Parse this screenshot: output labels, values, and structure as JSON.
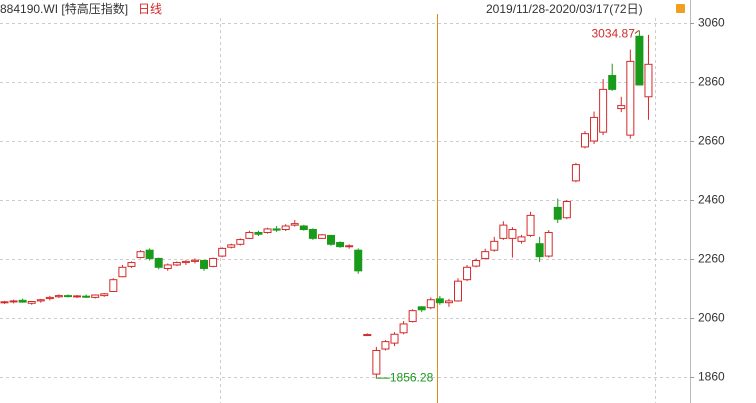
{
  "chart_data": {
    "type": "candlestick",
    "title": "884190.WI [特高压指数]",
    "period": "日线",
    "range": "2019/11/28-2020/03/17(72日)",
    "up_color": "#d42a2a",
    "down_color": "#1a9a1a",
    "ylim": [
      1772,
      3138
    ],
    "yticks": [
      1860,
      2060,
      2260,
      2460,
      2660,
      2860,
      3060
    ],
    "grid": true,
    "open": [
      2112,
      2115,
      2120,
      2110,
      2118,
      2126,
      2132,
      2136,
      2132,
      2134,
      2130,
      2136,
      2150,
      2200,
      2235,
      2265,
      2290,
      2262,
      2228,
      2240,
      2248,
      2252,
      2255,
      2235,
      2270,
      2300,
      2310,
      2330,
      2350,
      2350,
      2362,
      2360,
      2375,
      2372,
      2360,
      2330,
      2340,
      2316,
      2302,
      2290,
      2002,
      1870,
      1955,
      1975,
      2010,
      2048,
      2098,
      2095,
      2125,
      2112,
      2118,
      2190,
      2236,
      2262,
      2290,
      2330,
      2330,
      2320,
      2340,
      2312,
      2270,
      2435,
      2400,
      2525,
      2640,
      2660,
      2690,
      2882,
      2770,
      2680,
      3015,
      2810
    ],
    "high": [
      2118,
      2122,
      2126,
      2118,
      2125,
      2135,
      2140,
      2140,
      2138,
      2140,
      2140,
      2145,
      2195,
      2240,
      2252,
      2290,
      2296,
      2265,
      2245,
      2252,
      2256,
      2262,
      2258,
      2265,
      2300,
      2312,
      2330,
      2356,
      2356,
      2366,
      2372,
      2378,
      2392,
      2376,
      2364,
      2345,
      2342,
      2320,
      2310,
      2296,
      2008,
      1962,
      1985,
      2012,
      2050,
      2090,
      2100,
      2130,
      2135,
      2125,
      2195,
      2240,
      2262,
      2295,
      2335,
      2388,
      2368,
      2342,
      2420,
      2335,
      2358,
      2465,
      2460,
      2586,
      2694,
      2760,
      2870,
      2922,
      2810,
      2970,
      3034.87,
      3020
    ],
    "low": [
      2108,
      2110,
      2112,
      2105,
      2112,
      2120,
      2128,
      2130,
      2128,
      2128,
      2126,
      2132,
      2148,
      2198,
      2230,
      2262,
      2255,
      2225,
      2220,
      2236,
      2240,
      2245,
      2220,
      2232,
      2266,
      2296,
      2306,
      2328,
      2338,
      2346,
      2352,
      2355,
      2370,
      2356,
      2325,
      2328,
      2305,
      2298,
      2295,
      2210,
      1999,
      1856.28,
      1950,
      1965,
      2005,
      2045,
      2080,
      2090,
      2105,
      2098,
      2115,
      2185,
      2232,
      2258,
      2285,
      2325,
      2265,
      2312,
      2335,
      2250,
      2265,
      2382,
      2395,
      2520,
      2635,
      2650,
      2680,
      2830,
      2758,
      2668,
      2850,
      2732
    ],
    "close": [
      2115,
      2118,
      2114,
      2116,
      2122,
      2130,
      2136,
      2134,
      2135,
      2132,
      2138,
      2142,
      2190,
      2232,
      2248,
      2285,
      2262,
      2232,
      2240,
      2248,
      2252,
      2256,
      2228,
      2262,
      2296,
      2308,
      2326,
      2350,
      2344,
      2362,
      2358,
      2372,
      2380,
      2360,
      2330,
      2342,
      2310,
      2302,
      2305,
      2220,
      2004,
      1950,
      1980,
      2005,
      2040,
      2085,
      2088,
      2122,
      2112,
      2118,
      2185,
      2232,
      2255,
      2285,
      2320,
      2375,
      2360,
      2335,
      2408,
      2268,
      2350,
      2395,
      2455,
      2580,
      2685,
      2740,
      2835,
      2835,
      2780,
      2930,
      2850,
      2920
    ],
    "max_label": "3034.87",
    "min_label": "1856.28"
  }
}
